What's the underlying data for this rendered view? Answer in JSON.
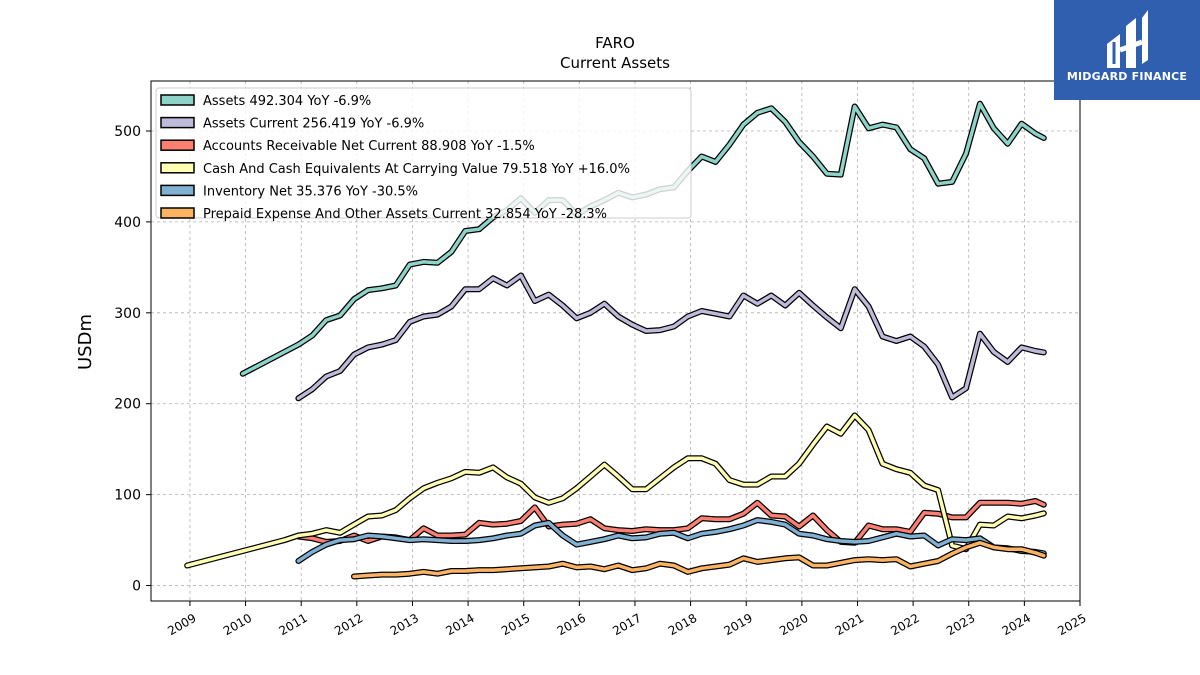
{
  "header": {
    "title": "FARO",
    "subtitle": "Current  Assets"
  },
  "brand": {
    "name": "MIDGARD FINANCE",
    "color": "#2f5fae"
  },
  "chart_data": {
    "type": "line",
    "ylabel": "USDm",
    "xlabel": "",
    "xlim": [
      2008.3,
      2025.0
    ],
    "ylim": [
      -17,
      555
    ],
    "grid": true,
    "grid_style": "dashed",
    "legend_position": "top-left",
    "x_ticks": [
      "2009",
      "2010",
      "2011",
      "2012",
      "2013",
      "2014",
      "2015",
      "2016",
      "2017",
      "2018",
      "2019",
      "2020",
      "2021",
      "2022",
      "2023",
      "2024",
      "2025"
    ],
    "y_ticks": [
      "0",
      "100",
      "200",
      "300",
      "400",
      "500"
    ],
    "series": [
      {
        "name": "Assets",
        "legend": "Assets  492.304 YoY -6.9%",
        "color": "#8dd3c7",
        "x": [
          2009.95,
          2010.95,
          2011.2,
          2011.45,
          2011.7,
          2011.95,
          2012.2,
          2012.45,
          2012.7,
          2012.95,
          2013.2,
          2013.45,
          2013.7,
          2013.95,
          2014.2,
          2014.45,
          2014.7,
          2014.95,
          2015.2,
          2015.45,
          2015.7,
          2015.95,
          2016.2,
          2016.45,
          2016.7,
          2016.95,
          2017.2,
          2017.45,
          2017.7,
          2017.95,
          2018.2,
          2018.45,
          2018.7,
          2018.95,
          2019.2,
          2019.45,
          2019.7,
          2019.95,
          2020.2,
          2020.45,
          2020.7,
          2020.95,
          2021.2,
          2021.45,
          2021.7,
          2021.95,
          2022.2,
          2022.45,
          2022.7,
          2022.95,
          2023.2,
          2023.45,
          2023.7,
          2023.95,
          2024.2,
          2024.35
        ],
        "y": [
          233,
          265,
          275,
          292,
          297,
          315,
          325,
          327,
          330,
          353,
          356,
          355,
          367,
          390,
          392,
          405,
          413,
          426,
          410,
          424,
          424,
          408,
          417,
          424,
          432,
          427,
          430,
          436,
          438,
          456,
          472,
          466,
          485,
          507,
          520,
          525,
          510,
          488,
          472,
          453,
          452,
          527,
          503,
          507,
          504,
          480,
          470,
          442,
          444,
          475,
          530,
          503,
          486,
          508,
          497,
          492.304
        ]
      },
      {
        "name": "Assets Current",
        "legend": "Assets Current  256.419 YoY -6.9%",
        "color": "#bebada",
        "x": [
          2010.95,
          2011.2,
          2011.45,
          2011.7,
          2011.95,
          2012.2,
          2012.45,
          2012.7,
          2012.95,
          2013.2,
          2013.45,
          2013.7,
          2013.95,
          2014.2,
          2014.45,
          2014.7,
          2014.95,
          2015.2,
          2015.45,
          2015.7,
          2015.95,
          2016.2,
          2016.45,
          2016.7,
          2016.95,
          2017.2,
          2017.45,
          2017.7,
          2017.95,
          2018.2,
          2018.45,
          2018.7,
          2018.95,
          2019.2,
          2019.45,
          2019.7,
          2019.95,
          2020.2,
          2020.45,
          2020.7,
          2020.95,
          2021.2,
          2021.45,
          2021.7,
          2021.95,
          2022.2,
          2022.45,
          2022.7,
          2022.95,
          2023.2,
          2023.45,
          2023.7,
          2023.95,
          2024.2,
          2024.35
        ],
        "y": [
          206,
          216,
          230,
          236,
          254,
          262,
          265,
          270,
          290,
          296,
          298,
          307,
          326,
          326,
          338,
          330,
          341,
          313,
          320,
          308,
          294,
          300,
          310,
          296,
          287,
          280,
          281,
          285,
          296,
          302,
          299,
          296,
          319,
          310,
          319,
          308,
          322,
          308,
          295,
          283,
          326,
          307,
          274,
          269,
          274,
          263,
          243,
          207,
          217,
          277,
          257,
          246,
          262,
          258,
          256.419
        ]
      },
      {
        "name": "Accounts Receivable Net Current",
        "legend": "Accounts Receivable Net Current  88.908 YoY -1.5%",
        "color": "#fb8072",
        "x": [
          2010.95,
          2011.2,
          2011.45,
          2011.7,
          2011.95,
          2012.2,
          2012.45,
          2012.7,
          2012.95,
          2013.2,
          2013.45,
          2013.7,
          2013.95,
          2014.2,
          2014.45,
          2014.7,
          2014.95,
          2015.2,
          2015.45,
          2015.7,
          2015.95,
          2016.2,
          2016.45,
          2016.7,
          2016.95,
          2017.2,
          2017.45,
          2017.7,
          2017.95,
          2018.2,
          2018.45,
          2018.7,
          2018.95,
          2019.2,
          2019.45,
          2019.7,
          2019.95,
          2020.2,
          2020.45,
          2020.7,
          2020.95,
          2021.2,
          2021.45,
          2021.7,
          2021.95,
          2022.2,
          2022.45,
          2022.7,
          2022.95,
          2023.2,
          2023.45,
          2023.7,
          2023.95,
          2024.2,
          2024.35
        ],
        "y": [
          54,
          52,
          48,
          49,
          55,
          49,
          54,
          53,
          50,
          63,
          55,
          55,
          56,
          69,
          67,
          68,
          71,
          86,
          65,
          67,
          68,
          73,
          63,
          61,
          60,
          62,
          61,
          61,
          63,
          74,
          73,
          73,
          79,
          91,
          77,
          76,
          65,
          77,
          61,
          48,
          47,
          66,
          62,
          62,
          59,
          80,
          79,
          75,
          75,
          91,
          91,
          91,
          90,
          93,
          88.908
        ]
      },
      {
        "name": "Cash And Cash Equivalents At Carrying Value",
        "legend": "Cash And Cash Equivalents At Carrying Value  79.518 YoY +16.0%",
        "color": "#ffffb3",
        "x": [
          2008.95,
          2009.95,
          2010.7,
          2010.95,
          2011.2,
          2011.45,
          2011.7,
          2011.95,
          2012.2,
          2012.45,
          2012.7,
          2012.95,
          2013.2,
          2013.45,
          2013.7,
          2013.95,
          2014.2,
          2014.45,
          2014.7,
          2014.95,
          2015.2,
          2015.45,
          2015.7,
          2015.95,
          2016.2,
          2016.45,
          2016.7,
          2016.95,
          2017.2,
          2017.45,
          2017.7,
          2017.95,
          2018.2,
          2018.45,
          2018.7,
          2018.95,
          2019.2,
          2019.45,
          2019.7,
          2019.95,
          2020.2,
          2020.45,
          2020.7,
          2020.95,
          2021.2,
          2021.45,
          2021.7,
          2021.95,
          2022.2,
          2022.45,
          2022.7,
          2022.95,
          2023.2,
          2023.45,
          2023.7,
          2023.95,
          2024.2,
          2024.35
        ],
        "y": [
          22,
          38,
          50,
          55,
          57,
          61,
          58,
          67,
          76,
          77,
          83,
          96,
          107,
          113,
          118,
          125,
          124,
          130,
          119,
          112,
          97,
          91,
          96,
          107,
          120,
          133,
          120,
          106,
          106,
          118,
          130,
          140,
          140,
          134,
          116,
          111,
          111,
          120,
          120,
          134,
          155,
          175,
          167,
          187,
          171,
          134,
          128,
          124,
          110,
          105,
          44,
          40,
          67,
          66,
          76,
          74,
          77,
          79.518
        ]
      },
      {
        "name": "Inventory Net",
        "legend": "Inventory Net  35.376 YoY -30.5%",
        "color": "#80b1d3",
        "x": [
          2010.95,
          2011.2,
          2011.45,
          2011.7,
          2011.95,
          2012.2,
          2012.45,
          2012.7,
          2012.95,
          2013.2,
          2013.45,
          2013.7,
          2013.95,
          2014.2,
          2014.45,
          2014.7,
          2014.95,
          2015.2,
          2015.45,
          2015.7,
          2015.95,
          2016.2,
          2016.45,
          2016.7,
          2016.95,
          2017.2,
          2017.45,
          2017.7,
          2017.95,
          2018.2,
          2018.45,
          2018.7,
          2018.95,
          2019.2,
          2019.45,
          2019.7,
          2019.95,
          2020.2,
          2020.45,
          2020.7,
          2020.95,
          2021.2,
          2021.45,
          2021.7,
          2021.95,
          2022.2,
          2022.45,
          2022.7,
          2022.95,
          2023.2,
          2023.45,
          2023.7,
          2023.95,
          2024.2,
          2024.35
        ],
        "y": [
          27,
          37,
          45,
          50,
          51,
          55,
          54,
          52,
          50,
          51,
          50,
          49,
          49,
          50,
          52,
          55,
          57,
          66,
          69,
          55,
          45,
          48,
          51,
          55,
          52,
          53,
          57,
          58,
          52,
          57,
          59,
          62,
          66,
          72,
          70,
          67,
          57,
          55,
          51,
          49,
          48,
          49,
          53,
          57,
          54,
          55,
          44,
          51,
          50,
          52,
          42,
          41,
          38,
          37,
          35.376
        ]
      },
      {
        "name": "Prepaid Expense And Other Assets Current",
        "legend": "Prepaid Expense And Other Assets Current  32.854 YoY -28.3%",
        "color": "#fdb462",
        "x": [
          2011.95,
          2012.2,
          2012.45,
          2012.7,
          2012.95,
          2013.2,
          2013.45,
          2013.7,
          2013.95,
          2014.2,
          2014.45,
          2014.7,
          2014.95,
          2015.2,
          2015.45,
          2015.7,
          2015.95,
          2016.2,
          2016.45,
          2016.7,
          2016.95,
          2017.2,
          2017.45,
          2017.7,
          2017.95,
          2018.2,
          2018.45,
          2018.7,
          2018.95,
          2019.2,
          2019.45,
          2019.7,
          2019.95,
          2020.2,
          2020.45,
          2020.7,
          2020.95,
          2021.2,
          2021.45,
          2021.7,
          2021.95,
          2022.2,
          2022.45,
          2022.7,
          2022.95,
          2023.2,
          2023.45,
          2023.7,
          2023.95,
          2024.2,
          2024.35
        ],
        "y": [
          10,
          11,
          12,
          12,
          13,
          15,
          13,
          16,
          16,
          17,
          17,
          18,
          19,
          20,
          21,
          24,
          20,
          21,
          18,
          22,
          17,
          19,
          24,
          22,
          15,
          19,
          21,
          23,
          30,
          26,
          28,
          30,
          31,
          22,
          22,
          25,
          28,
          29,
          28,
          29,
          21,
          24,
          27,
          35,
          42,
          47,
          42,
          40,
          40,
          36,
          32.854
        ]
      }
    ]
  }
}
